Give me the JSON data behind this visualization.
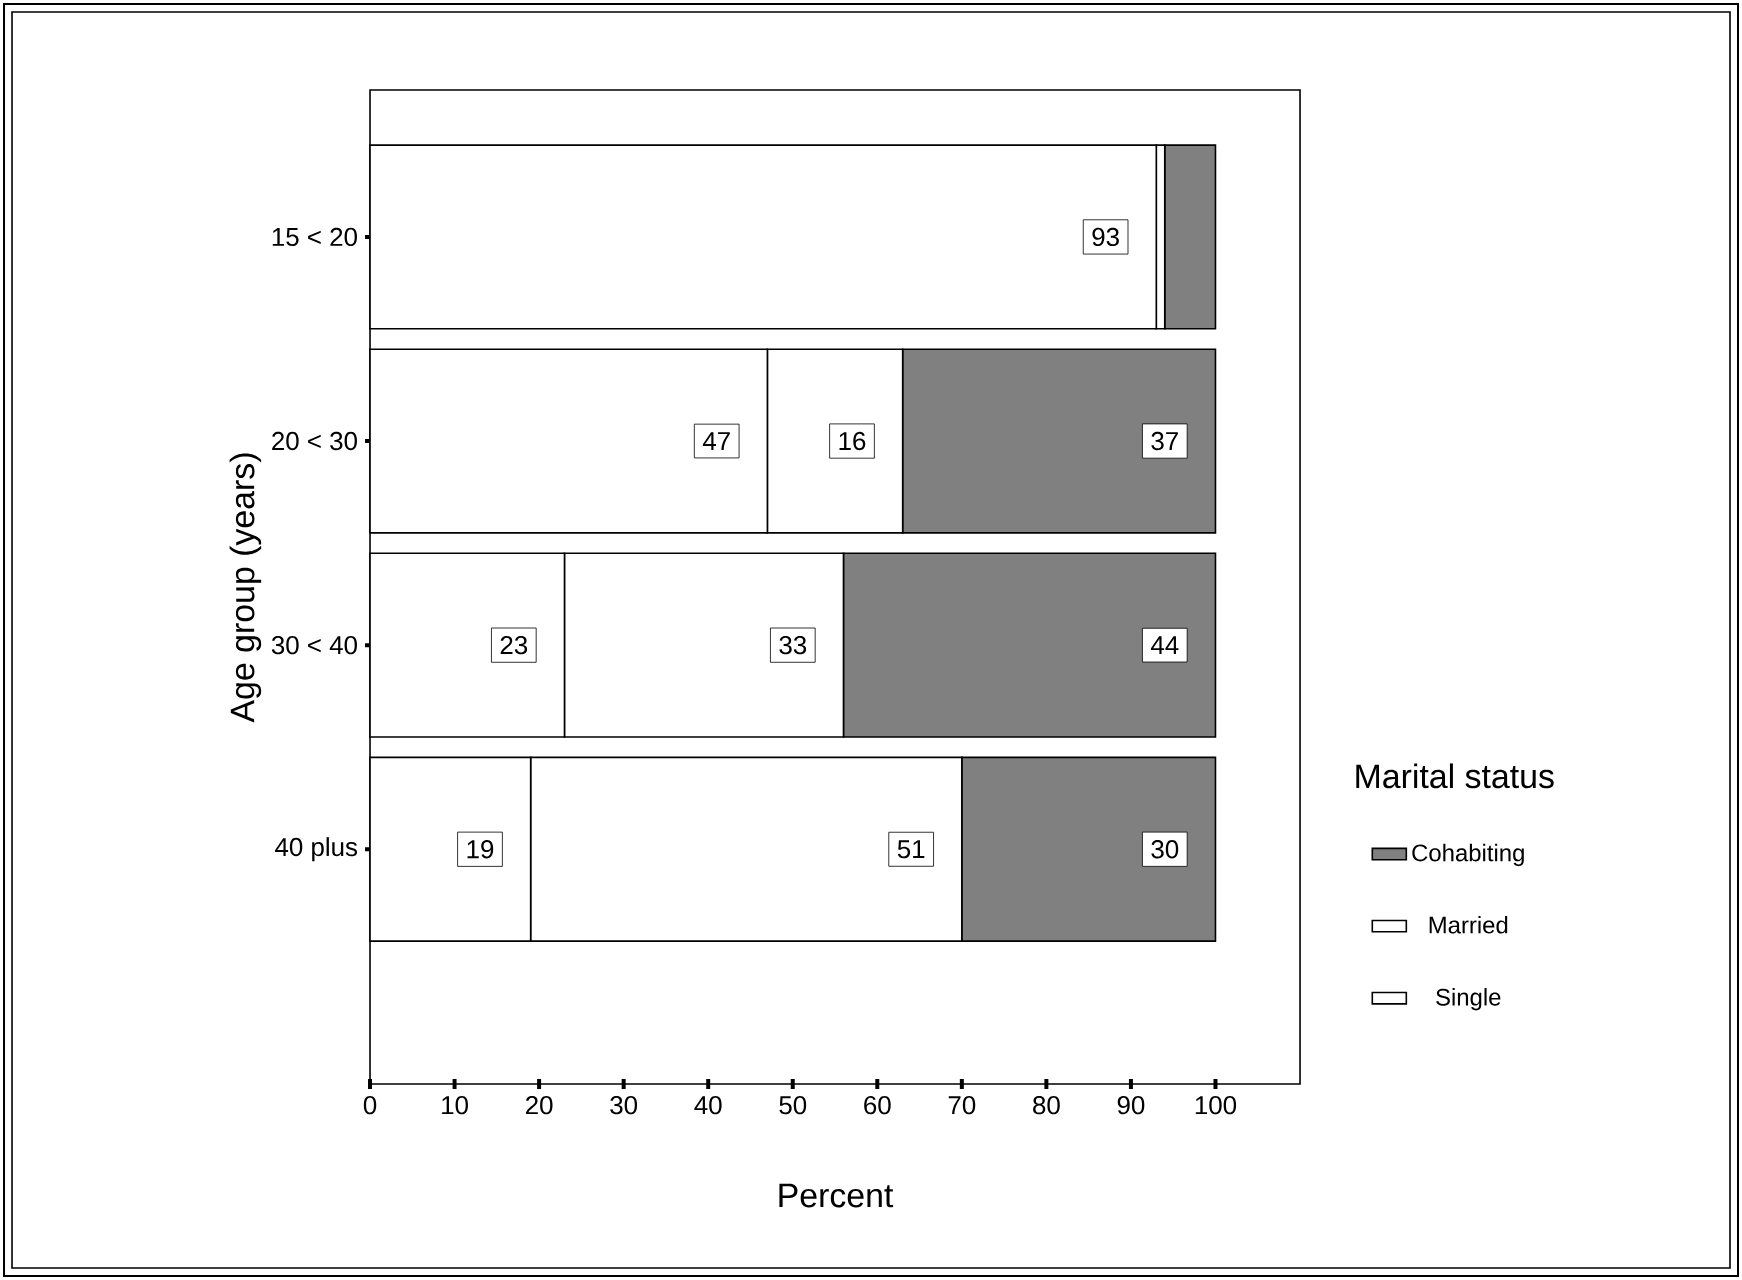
{
  "chart_data": {
    "type": "bar",
    "orientation": "horizontal",
    "stacked": true,
    "categories": [
      "15 < 20",
      "20 < 30",
      "30 < 40",
      "40 plus"
    ],
    "series": [
      {
        "name": "Single",
        "color": "#ffffff",
        "values": [
          93,
          47,
          23,
          19
        ],
        "value_labels": [
          "93",
          "47",
          "23",
          "19"
        ]
      },
      {
        "name": "Married",
        "color": "#ffffff",
        "values": [
          1,
          16,
          33,
          51
        ],
        "value_labels": [
          null,
          "16",
          "33",
          "51"
        ]
      },
      {
        "name": "Cohabiting",
        "color": "#808080",
        "values": [
          6,
          37,
          44,
          30
        ],
        "value_labels": [
          null,
          "37",
          "44",
          "30"
        ]
      }
    ],
    "xlim": [
      0,
      110
    ],
    "xticks": [
      0,
      10,
      20,
      30,
      40,
      50,
      60,
      70,
      80,
      90,
      100
    ],
    "xlabel": "Percent",
    "ylabel": "Age group (years)",
    "legend_title": "Marital status",
    "legend": "right",
    "grid": false
  }
}
